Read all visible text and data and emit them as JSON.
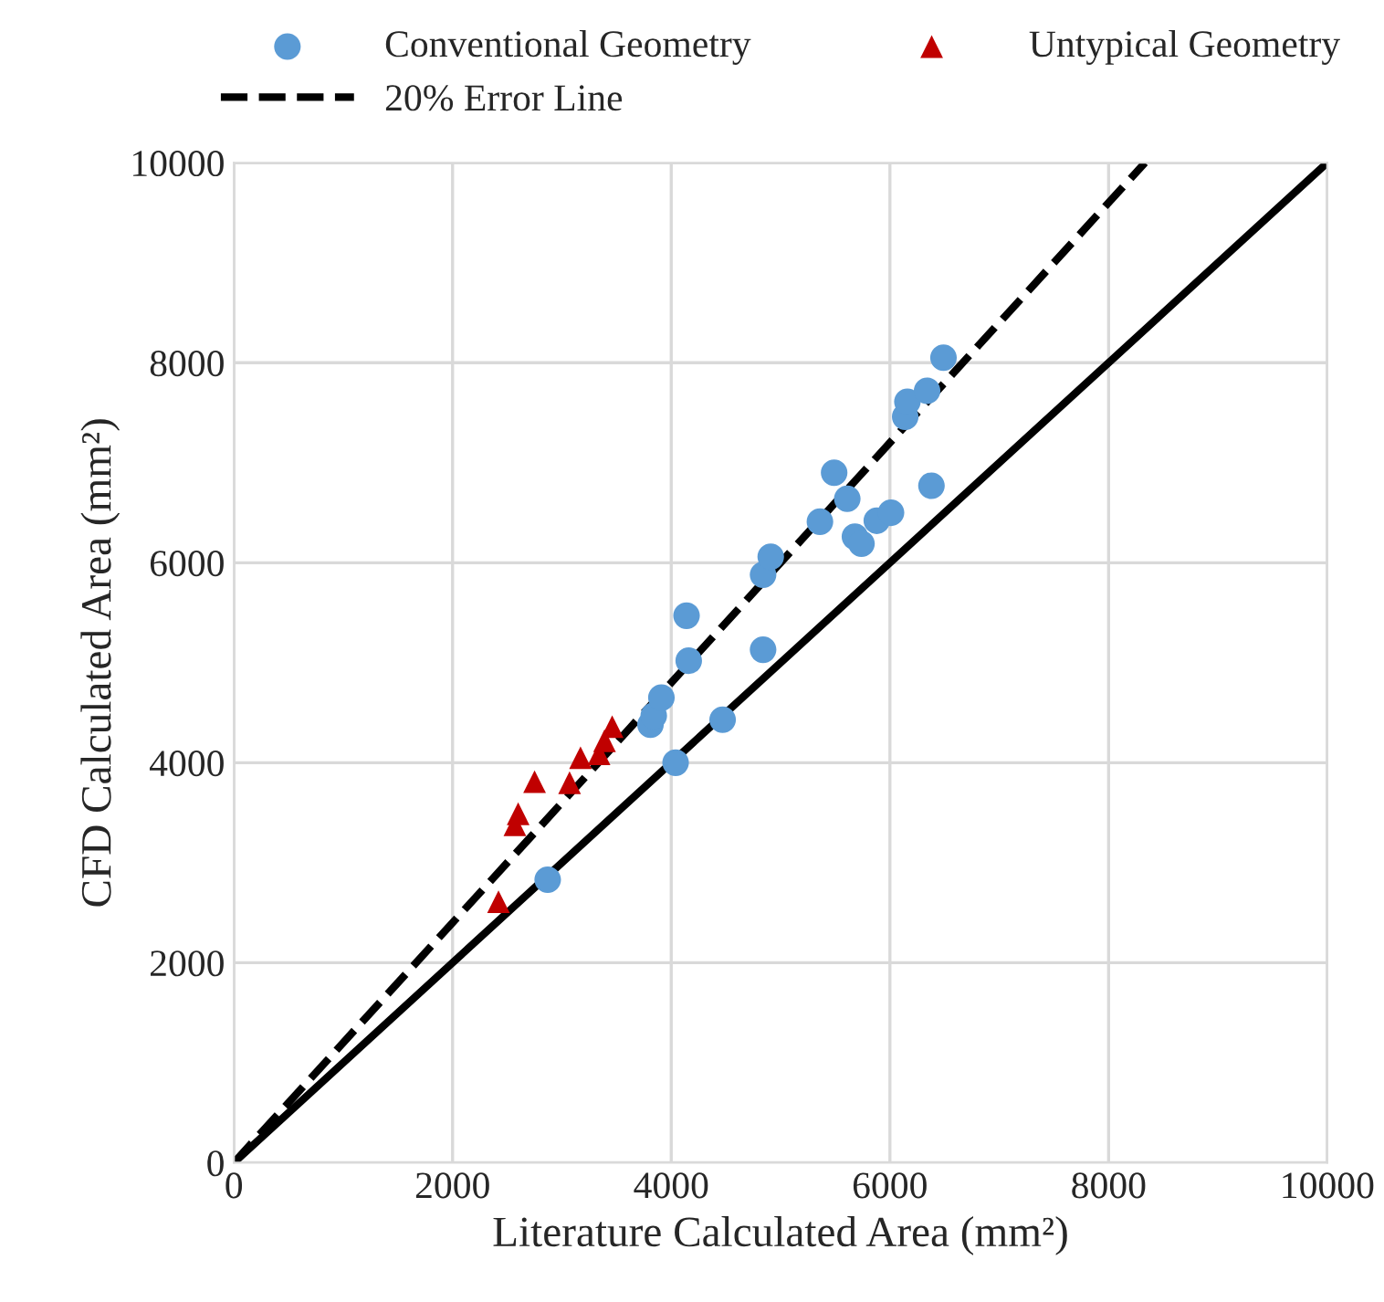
{
  "chart_data": {
    "type": "scatter",
    "xlabel": "Literature Calculated Area (mm²)",
    "ylabel": "CFD Calculated Area (mm²)",
    "xlim": [
      0,
      10000
    ],
    "ylim": [
      0,
      10000
    ],
    "xticks": [
      0,
      2000,
      4000,
      6000,
      8000,
      10000
    ],
    "yticks": [
      0,
      2000,
      4000,
      6000,
      8000,
      10000
    ],
    "grid": true,
    "legend": "top",
    "series": [
      {
        "name": "Conventional Geometry",
        "color": "#5b9bd5",
        "marker": "circle",
        "x": [
          2870,
          4040,
          4470,
          4840,
          4140,
          4160,
          3810,
          3840,
          3910,
          4840,
          4910,
          5360,
          5490,
          5610,
          5680,
          5740,
          5880,
          6010,
          6380,
          6140,
          6160,
          6340,
          6490
        ],
        "values": [
          2830,
          4000,
          4430,
          5130,
          5470,
          5020,
          4380,
          4470,
          4650,
          5880,
          6060,
          6410,
          6900,
          6640,
          6260,
          6190,
          6420,
          6500,
          6770,
          7460,
          7610,
          7720,
          8050
        ]
      },
      {
        "name": "20% Error Line",
        "type": "line",
        "color": "#000000",
        "line_style": "dashed",
        "marker": "none",
        "x": [
          0,
          8333
        ],
        "values": [
          0,
          10000
        ]
      },
      {
        "name": "Untypical Geometry",
        "color": "#c00000",
        "marker": "triangle",
        "x": [
          2420,
          2570,
          2600,
          2750,
          3070,
          3170,
          3340,
          3390,
          3460
        ],
        "values": [
          2610,
          3380,
          3490,
          3810,
          3800,
          4050,
          4090,
          4220,
          4360
        ]
      },
      {
        "type": "line",
        "color": "#000000",
        "line_style": "solid",
        "marker": "none",
        "x": [
          0,
          10000
        ],
        "values": [
          0,
          10000
        ]
      }
    ]
  }
}
